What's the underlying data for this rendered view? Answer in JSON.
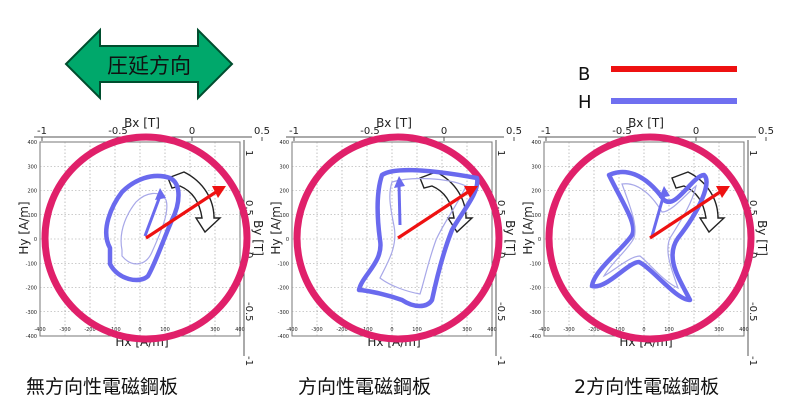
{
  "rolling_direction": {
    "label": "圧延方向",
    "fill_color": "#00a86b",
    "stroke_color": "#004d2e"
  },
  "legend": [
    {
      "label": "B",
      "color": "#ee1111"
    },
    {
      "label": "H",
      "color": "#6f6ff0"
    }
  ],
  "panels": [
    {
      "caption": "無方向性電磁鋼板",
      "bx_label": "Bx [T]",
      "by_label": "By [T]",
      "hx_label": "Hx [A/m]",
      "hy_label": "Hy [A/m]",
      "b_ticks_top": [
        "-1",
        "-0.5",
        "0",
        "0.5"
      ],
      "b_ticks_right": [
        "1",
        "0.5",
        "0",
        "-0.5",
        "-1"
      ],
      "h_ticks": [
        "-400",
        "-300",
        "-200",
        "-100",
        "0",
        "100",
        "200",
        "300",
        "400"
      ]
    },
    {
      "caption": "方向性電磁鋼板",
      "bx_label": "Bx [T]",
      "by_label": "By [T]",
      "hx_label": "Hx [A/m]",
      "hy_label": "Hy [A/m]",
      "b_ticks_top": [
        "-1",
        "-0.5",
        "0",
        "0.5"
      ],
      "b_ticks_right": [
        "1",
        "0.5",
        "0",
        "-0.5",
        "-1"
      ],
      "h_ticks": [
        "-400",
        "-300",
        "-200",
        "-100",
        "0",
        "100",
        "200",
        "300",
        "400"
      ]
    },
    {
      "caption": "2方向性電磁鋼板",
      "bx_label": "Bx [T]",
      "by_label": "By [T]",
      "hx_label": "Hx [A/m]",
      "hy_label": "Hy [A/m]",
      "b_ticks_top": [
        "-1",
        "-0.5",
        "0",
        "0.5"
      ],
      "b_ticks_right": [
        "1",
        "0.5",
        "0",
        "-0.5",
        "-1"
      ],
      "h_ticks": [
        "-400",
        "-300",
        "-200",
        "-100",
        "0",
        "100",
        "200",
        "300",
        "400"
      ]
    }
  ],
  "colors": {
    "b_circle": "#e0206a",
    "b_arrow": "#ee1111",
    "h_locus": "#6a6aee",
    "grid": "#9a9a9a"
  }
}
